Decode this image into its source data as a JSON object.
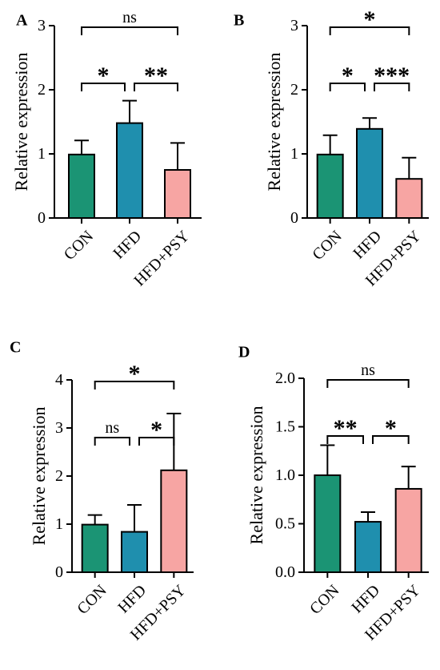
{
  "chart_data": [
    {
      "panel": "A",
      "type": "bar",
      "ylabel": "Relative expression",
      "ylim": [
        0,
        3
      ],
      "yticks": [
        "0",
        "1",
        "2",
        "3"
      ],
      "categories": [
        "CON",
        "HFD",
        "HFD+PSY"
      ],
      "values": [
        0.99,
        1.48,
        0.75
      ],
      "errors": [
        0.22,
        0.35,
        0.42
      ],
      "colors": [
        "#1b9474",
        "#1f8fae",
        "#f7a5a3"
      ],
      "comparisons": [
        {
          "from": 0,
          "to": 1,
          "label": "*",
          "level": 1
        },
        {
          "from": 1,
          "to": 2,
          "label": "**",
          "level": 1
        },
        {
          "from": 0,
          "to": 2,
          "label": "ns",
          "level": 2
        }
      ]
    },
    {
      "panel": "B",
      "type": "bar",
      "ylabel": "Relative expression",
      "ylim": [
        0,
        3
      ],
      "yticks": [
        "0",
        "1",
        "2",
        "3"
      ],
      "categories": [
        "CON",
        "HFD",
        "HFD+PSY"
      ],
      "values": [
        0.99,
        1.39,
        0.61
      ],
      "errors": [
        0.3,
        0.17,
        0.33
      ],
      "colors": [
        "#1b9474",
        "#1f8fae",
        "#f7a5a3"
      ],
      "comparisons": [
        {
          "from": 0,
          "to": 1,
          "label": "*",
          "level": 1
        },
        {
          "from": 1,
          "to": 2,
          "label": "***",
          "level": 1
        },
        {
          "from": 0,
          "to": 2,
          "label": "*",
          "level": 2
        }
      ]
    },
    {
      "panel": "C",
      "type": "bar",
      "ylabel": "Relative expression",
      "ylim": [
        0,
        4
      ],
      "yticks": [
        "0",
        "1",
        "2",
        "3",
        "4"
      ],
      "categories": [
        "CON",
        "HFD",
        "HFD+PSY"
      ],
      "values": [
        0.99,
        0.84,
        2.12
      ],
      "errors": [
        0.2,
        0.56,
        1.18
      ],
      "colors": [
        "#1b9474",
        "#1f8fae",
        "#f7a5a3"
      ],
      "comparisons": [
        {
          "from": 0,
          "to": 1,
          "label": "ns",
          "level": 1
        },
        {
          "from": 1,
          "to": 2,
          "label": "*",
          "level": 1
        },
        {
          "from": 0,
          "to": 2,
          "label": "*",
          "level": 2
        }
      ]
    },
    {
      "panel": "D",
      "type": "bar",
      "ylabel": "Relative expression",
      "ylim": [
        0,
        2.0
      ],
      "yticks": [
        "0.0",
        "0.5",
        "1.0",
        "1.5",
        "2.0"
      ],
      "categories": [
        "CON",
        "HFD",
        "HFD+PSY"
      ],
      "values": [
        1.0,
        0.52,
        0.86
      ],
      "errors": [
        0.31,
        0.1,
        0.23
      ],
      "colors": [
        "#1b9474",
        "#1f8fae",
        "#f7a5a3"
      ],
      "comparisons": [
        {
          "from": 0,
          "to": 1,
          "label": "**",
          "level": 1
        },
        {
          "from": 1,
          "to": 2,
          "label": "*",
          "level": 1
        },
        {
          "from": 0,
          "to": 2,
          "label": "ns",
          "level": 2
        }
      ]
    }
  ]
}
